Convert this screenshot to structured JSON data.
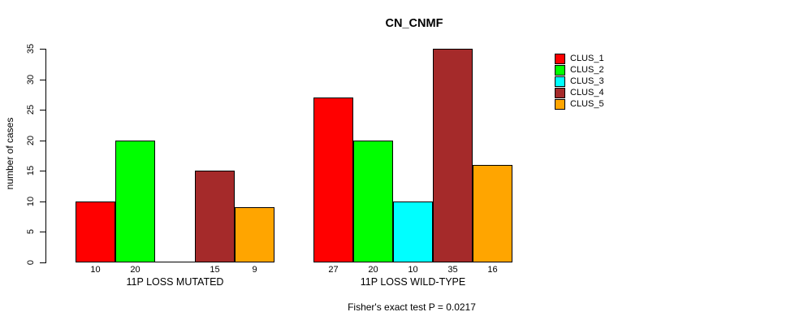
{
  "chart_data": {
    "type": "bar",
    "title": "CN_CNMF",
    "ylabel": "number of cases",
    "xlabel": "",
    "ylim": [
      0,
      35
    ],
    "yticks": [
      0,
      5,
      10,
      15,
      20,
      25,
      30,
      35
    ],
    "grid": false,
    "legend_position": "right",
    "categories": [
      "11P LOSS MUTATED",
      "11P LOSS WILD-TYPE"
    ],
    "series": [
      {
        "name": "CLUS_1",
        "color": "#FF0000",
        "values": [
          10,
          27
        ]
      },
      {
        "name": "CLUS_2",
        "color": "#00FF00",
        "values": [
          20,
          20
        ]
      },
      {
        "name": "CLUS_3",
        "color": "#00FFFF",
        "values": [
          0,
          10
        ]
      },
      {
        "name": "CLUS_4",
        "color": "#A52A2A",
        "values": [
          15,
          35
        ]
      },
      {
        "name": "CLUS_5",
        "color": "#FFA500",
        "values": [
          9,
          16
        ]
      }
    ],
    "bar_value_labels": {
      "11P LOSS MUTATED": [
        "10",
        "20",
        "",
        "15",
        "9"
      ],
      "11P LOSS WILD-TYPE": [
        "27",
        "20",
        "10",
        "35",
        "16"
      ]
    },
    "annotation": "Fisher's exact test P = 0.0217"
  },
  "colors": {
    "axis": "#000000",
    "text": "#000000",
    "background": "#FFFFFF"
  }
}
